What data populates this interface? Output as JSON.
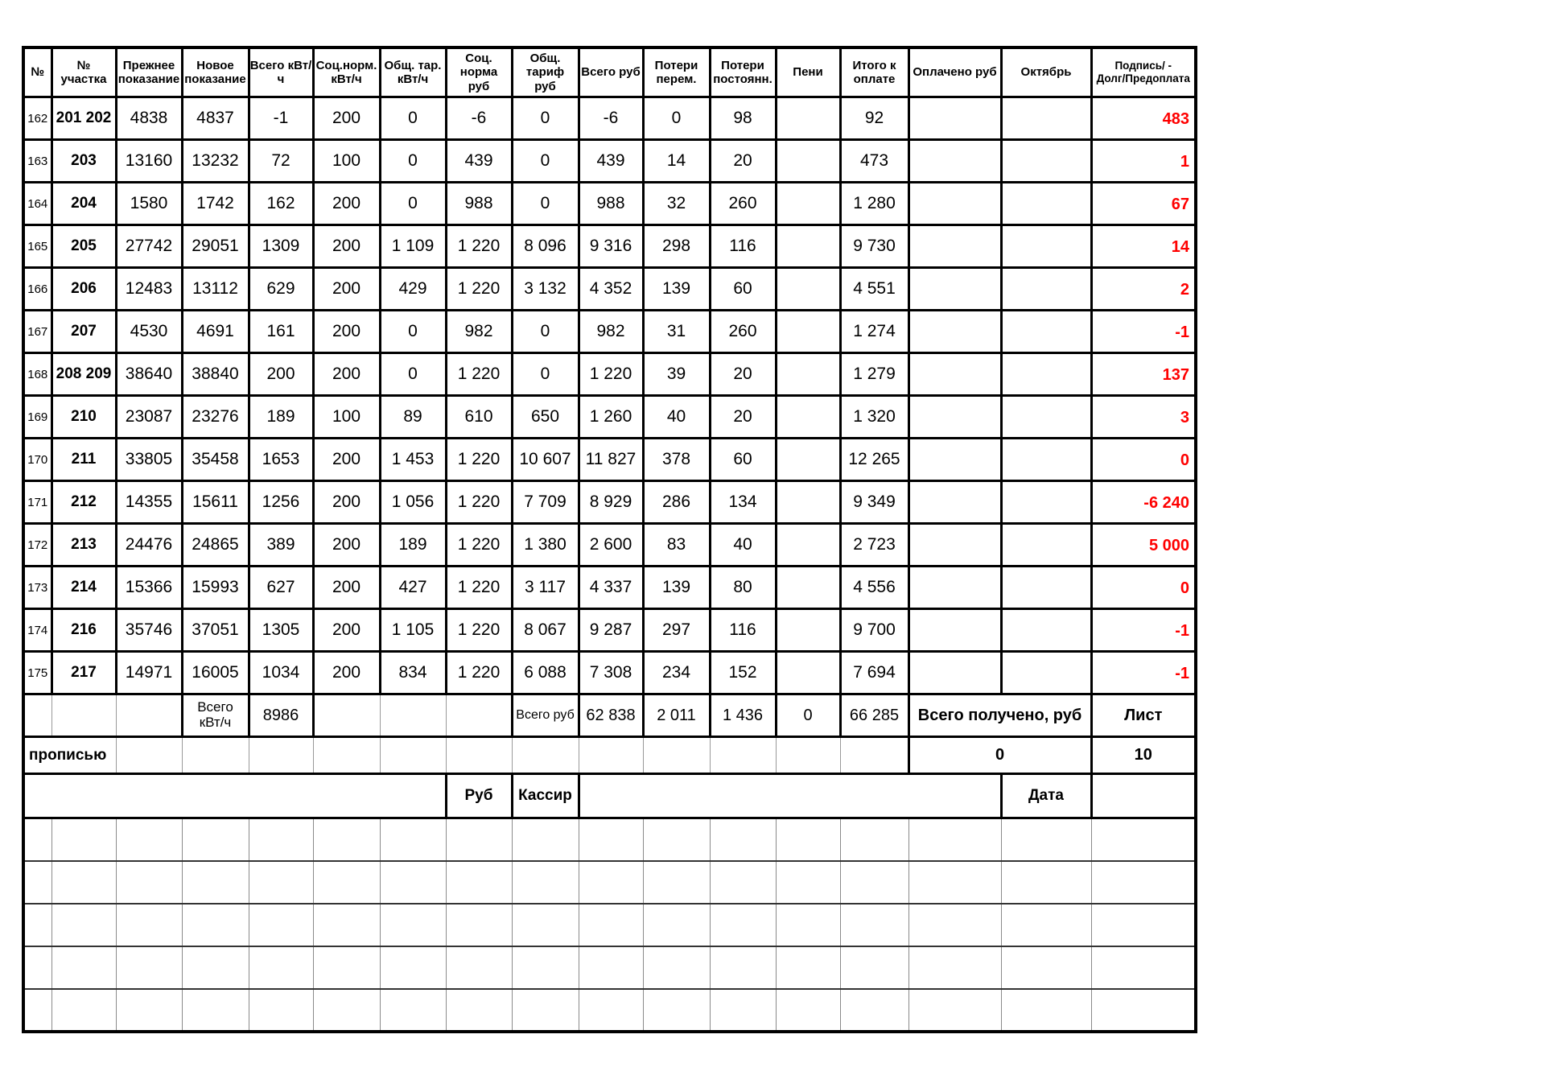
{
  "colors": {
    "debt_red": "#FF0000",
    "grid_black": "#000000"
  },
  "table": {
    "columns": [
      "№",
      "№ участка",
      "Прежнее\nпоказание",
      "Новое\nпоказание",
      "Всего кВт/ч",
      "Соц.норм.\nкВт/ч",
      "Общ. тар.\nкВт/ч",
      "Соц. норма\nруб",
      "Общ. тариф\nруб",
      "Всего руб",
      "Потери\nперем.",
      "Потери\nпостоянн.",
      "Пени",
      "Итого к\nоплате",
      "Оплачено руб",
      "Октябрь",
      "Подпись/ -\nДолг/Предоплата"
    ],
    "rows": [
      [
        "162",
        "201 202",
        "4838",
        "4837",
        "-1",
        "200",
        "0",
        "-6",
        "0",
        "-6",
        "0",
        "98",
        "",
        "92",
        "",
        "",
        "483"
      ],
      [
        "163",
        "203",
        "13160",
        "13232",
        "72",
        "100",
        "0",
        "439",
        "0",
        "439",
        "14",
        "20",
        "",
        "473",
        "",
        "",
        "1"
      ],
      [
        "164",
        "204",
        "1580",
        "1742",
        "162",
        "200",
        "0",
        "988",
        "0",
        "988",
        "32",
        "260",
        "",
        "1 280",
        "",
        "",
        "67"
      ],
      [
        "165",
        "205",
        "27742",
        "29051",
        "1309",
        "200",
        "1 109",
        "1 220",
        "8 096",
        "9 316",
        "298",
        "116",
        "",
        "9 730",
        "",
        "",
        "14"
      ],
      [
        "166",
        "206",
        "12483",
        "13112",
        "629",
        "200",
        "429",
        "1 220",
        "3 132",
        "4 352",
        "139",
        "60",
        "",
        "4 551",
        "",
        "",
        "2"
      ],
      [
        "167",
        "207",
        "4530",
        "4691",
        "161",
        "200",
        "0",
        "982",
        "0",
        "982",
        "31",
        "260",
        "",
        "1 274",
        "",
        "",
        "-1"
      ],
      [
        "168",
        "208 209",
        "38640",
        "38840",
        "200",
        "200",
        "0",
        "1 220",
        "0",
        "1 220",
        "39",
        "20",
        "",
        "1 279",
        "",
        "",
        "137"
      ],
      [
        "169",
        "210",
        "23087",
        "23276",
        "189",
        "100",
        "89",
        "610",
        "650",
        "1 260",
        "40",
        "20",
        "",
        "1 320",
        "",
        "",
        "3"
      ],
      [
        "170",
        "211",
        "33805",
        "35458",
        "1653",
        "200",
        "1 453",
        "1 220",
        "10 607",
        "11 827",
        "378",
        "60",
        "",
        "12 265",
        "",
        "",
        "0"
      ],
      [
        "171",
        "212",
        "14355",
        "15611",
        "1256",
        "200",
        "1 056",
        "1 220",
        "7 709",
        "8 929",
        "286",
        "134",
        "",
        "9 349",
        "",
        "",
        "-6 240"
      ],
      [
        "172",
        "213",
        "24476",
        "24865",
        "389",
        "200",
        "189",
        "1 220",
        "1 380",
        "2 600",
        "83",
        "40",
        "",
        "2 723",
        "",
        "",
        "5 000"
      ],
      [
        "173",
        "214",
        "15366",
        "15993",
        "627",
        "200",
        "427",
        "1 220",
        "3 117",
        "4 337",
        "139",
        "80",
        "",
        "4 556",
        "",
        "",
        "0"
      ],
      [
        "174",
        "216",
        "35746",
        "37051",
        "1305",
        "200",
        "1 105",
        "1 220",
        "8 067",
        "9 287",
        "297",
        "116",
        "",
        "9 700",
        "",
        "",
        "-1"
      ],
      [
        "175",
        "217",
        "14971",
        "16005",
        "1034",
        "200",
        "834",
        "1 220",
        "6 088",
        "7 308",
        "234",
        "152",
        "",
        "7 694",
        "",
        "",
        "-1"
      ]
    ],
    "totals": {
      "kwh_label": "Всего\nкВт/ч",
      "kwh_value": "8986",
      "rub_label": "Всего руб",
      "rub_value": "62 838",
      "loss_var": "2 011",
      "loss_const": "1 436",
      "peni": "0",
      "total_due": "66 285",
      "received_label": "Всего получено, руб",
      "sheet_label": "Лист"
    },
    "propisyu": {
      "label": "прописью",
      "received_value": "0",
      "sheet_value": "10"
    },
    "cashier": {
      "rub_label": "Руб",
      "cashier_label": "Кассир",
      "date_label": "Дата"
    }
  }
}
